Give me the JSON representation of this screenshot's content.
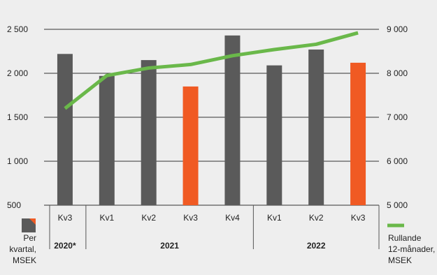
{
  "chart_data": {
    "type": "bar+line",
    "title": "",
    "categories": [
      "Kv3",
      "Kv1",
      "Kv2",
      "Kv3",
      "Kv4",
      "Kv1",
      "Kv2",
      "Kv3"
    ],
    "year_groups": [
      {
        "label": "2020*",
        "span": [
          0,
          0
        ]
      },
      {
        "label": "2021",
        "span": [
          1,
          4
        ]
      },
      {
        "label": "2022",
        "span": [
          5,
          7
        ]
      }
    ],
    "series": [
      {
        "name": "Per kvartal, MSEK",
        "type": "bar",
        "axis": "left",
        "values": [
          2220,
          1970,
          2150,
          1850,
          2430,
          2090,
          2270,
          2120
        ],
        "colors": [
          "#5a5a5a",
          "#5a5a5a",
          "#5a5a5a",
          "#f05a23",
          "#5a5a5a",
          "#5a5a5a",
          "#5a5a5a",
          "#f05a23"
        ]
      },
      {
        "name": "Rullande 12-månader, MSEK",
        "type": "line",
        "axis": "right",
        "values": [
          7200,
          7950,
          8120,
          8200,
          8400,
          8540,
          8660,
          8920
        ],
        "color": "#6ab84a"
      }
    ],
    "y_left": {
      "min": 500,
      "max": 2500,
      "ticks": [
        500,
        1000,
        1500,
        2000,
        2500
      ],
      "tick_labels": [
        "500",
        "1 000",
        "1 500",
        "2 000",
        "2 500"
      ]
    },
    "y_right": {
      "min": 5000,
      "max": 9000,
      "ticks": [
        5000,
        6000,
        7000,
        8000,
        9000
      ],
      "tick_labels": [
        "5 000",
        "6 000",
        "7 000",
        "8 000",
        "9 000"
      ]
    },
    "grid": true,
    "legend": [
      {
        "lines": [
          "Per",
          "kvartal,",
          "MSEK"
        ],
        "position": "bottom-left"
      },
      {
        "lines": [
          "Rullande",
          "12-månader,",
          "MSEK"
        ],
        "position": "bottom-right"
      }
    ],
    "colors": {
      "bar": "#5a5a5a",
      "highlight": "#f05a23",
      "line": "#6ab84a",
      "grid": "#333333"
    }
  }
}
